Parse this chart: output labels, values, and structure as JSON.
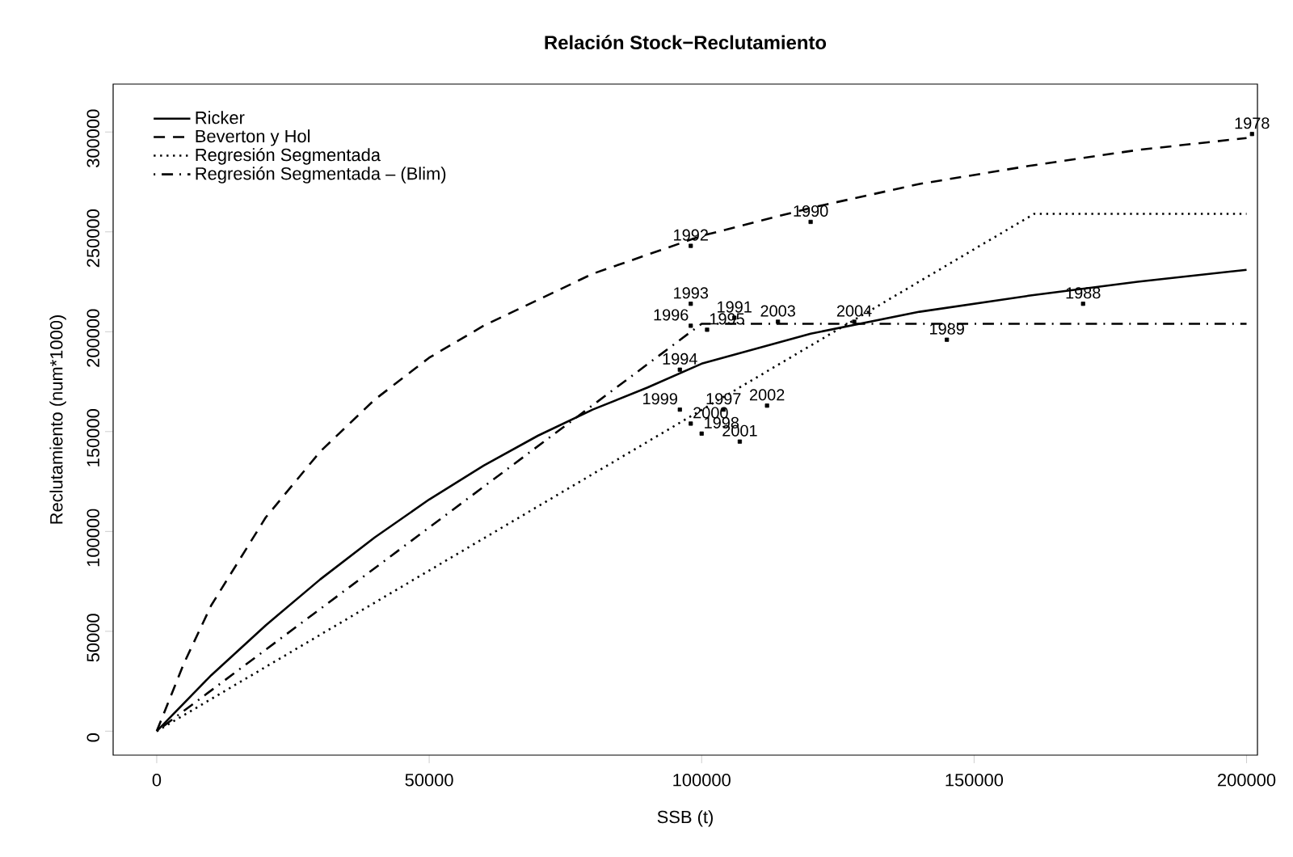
{
  "chart_data": {
    "type": "line",
    "title": "**Relación Stock−Reclutamiento**",
    "xlabel": "SSB (t)",
    "ylabel": "Reclutamiento (num*1000)",
    "xlim": [
      -8000,
      202000
    ],
    "ylim": [
      -12000,
      324000
    ],
    "xticks": [
      0,
      50000,
      100000,
      150000,
      200000
    ],
    "yticks": [
      0,
      50000,
      100000,
      150000,
      200000,
      250000,
      300000
    ],
    "grid": false,
    "legend": "top left",
    "series": [
      {
        "name": "Ricker",
        "line_style": "solid",
        "color": "#000000",
        "x": [
          0,
          10000,
          20000,
          30000,
          40000,
          50000,
          60000,
          70000,
          80000,
          90000,
          100000,
          120000,
          140000,
          160000,
          180000,
          200000
        ],
        "values": [
          0,
          28000,
          53000,
          76000,
          97000,
          116000,
          133000,
          148000,
          161000,
          172000,
          184000,
          199000,
          210000,
          218000,
          225000,
          231000
        ]
      },
      {
        "name": "Beverton y Hol",
        "line_style": "dashed",
        "color": "#000000",
        "x": [
          0,
          5000,
          10000,
          20000,
          30000,
          40000,
          50000,
          60000,
          80000,
          100000,
          120000,
          140000,
          160000,
          180000,
          200000
        ],
        "values": [
          0,
          34000,
          63000,
          107000,
          140000,
          166000,
          187000,
          203000,
          229000,
          248000,
          262000,
          274000,
          283000,
          291000,
          297000
        ]
      },
      {
        "name": "Regresión Segmentada",
        "line_style": "dotted",
        "color": "#000000",
        "x": [
          0,
          161000,
          200000
        ],
        "values": [
          0,
          259000,
          259000
        ]
      },
      {
        "name": "Regresión Segmentada – (Blim)",
        "line_style": "dashdot",
        "color": "#000000",
        "x": [
          0,
          100000,
          200000
        ],
        "values": [
          0,
          204000,
          204000
        ]
      },
      {
        "type": "scatter",
        "marker": "square",
        "color": "#000000",
        "x": [
          201000,
          98000,
          120000,
          98000,
          98000,
          101000,
          106000,
          114000,
          128000,
          145000,
          170000,
          96000,
          96000,
          98000,
          100000,
          104000,
          112000,
          107000
        ],
        "values": [
          299000,
          243000,
          255000,
          214000,
          203000,
          201000,
          207000,
          205000,
          205000,
          196000,
          214000,
          181000,
          161000,
          154000,
          149000,
          161000,
          163000,
          145000
        ]
      }
    ],
    "annotations": [
      {
        "text": "1978",
        "x": 201000,
        "y": 299000
      },
      {
        "text": "1992",
        "x": 98000,
        "y": 243000
      },
      {
        "text": "1990",
        "x": 120000,
        "y": 255000
      },
      {
        "text": "1993",
        "x": 98000,
        "y": 214000
      },
      {
        "text": "1996",
        "x": 98000,
        "y": 203000
      },
      {
        "text": "1995",
        "x": 101000,
        "y": 201000
      },
      {
        "text": "1991",
        "x": 106000,
        "y": 207000
      },
      {
        "text": "2003",
        "x": 114000,
        "y": 205000
      },
      {
        "text": "2004",
        "x": 128000,
        "y": 205000
      },
      {
        "text": "1989",
        "x": 145000,
        "y": 196000
      },
      {
        "text": "1988",
        "x": 170000,
        "y": 214000
      },
      {
        "text": "1994",
        "x": 96000,
        "y": 181000
      },
      {
        "text": "1999",
        "x": 96000,
        "y": 161000
      },
      {
        "text": "2000",
        "x": 98000,
        "y": 154000
      },
      {
        "text": "1998",
        "x": 100000,
        "y": 149000
      },
      {
        "text": "1997",
        "x": 104000,
        "y": 161000
      },
      {
        "text": "2002",
        "x": 112000,
        "y": 163000
      },
      {
        "text": "2001",
        "x": 107000,
        "y": 145000
      }
    ]
  }
}
